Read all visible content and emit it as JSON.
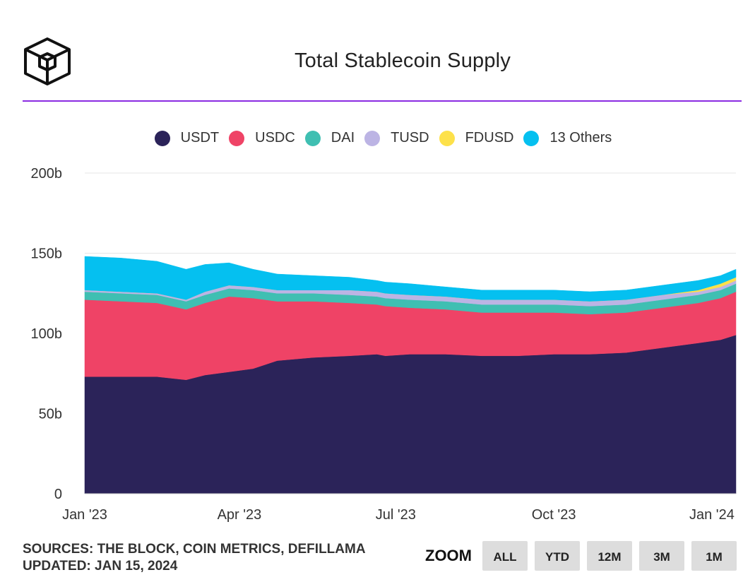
{
  "title": "Total Stablecoin Supply",
  "colors": {
    "accent_rule": "#8a2be2",
    "USDT": "#2b2359",
    "USDC": "#ef4366",
    "DAI": "#3fbfb2",
    "TUSD": "#bcb4e4",
    "FDUSD": "#fde14a",
    "Others": "#05c0f0",
    "logo": "#111111"
  },
  "logo_icon": "cube-icon",
  "legend": [
    {
      "label": "USDT",
      "color_key": "USDT"
    },
    {
      "label": "USDC",
      "color_key": "USDC"
    },
    {
      "label": "DAI",
      "color_key": "DAI"
    },
    {
      "label": "TUSD",
      "color_key": "TUSD"
    },
    {
      "label": "FDUSD",
      "color_key": "FDUSD"
    },
    {
      "label": "13 Others",
      "color_key": "Others"
    }
  ],
  "footer": {
    "sources": "SOURCES: THE BLOCK, COIN METRICS, DEFILLAMA",
    "updated": "UPDATED: JAN 15, 2024"
  },
  "zoom": {
    "label": "ZOOM",
    "buttons": [
      "ALL",
      "YTD",
      "12M",
      "3M",
      "1M"
    ]
  },
  "chart_data": {
    "type": "area",
    "stacked": true,
    "title": "Total Stablecoin Supply",
    "unit": "billion USD",
    "ylim": [
      0,
      200
    ],
    "y_ticks": [
      0,
      50,
      100,
      150,
      200
    ],
    "y_tick_labels": [
      "0",
      "50b",
      "100b",
      "150b",
      "200b"
    ],
    "x_range": [
      "2023-01-01",
      "2024-01-15"
    ],
    "x_ticks": [
      {
        "date": "2023-01-01",
        "label": "Jan '23"
      },
      {
        "date": "2023-04-01",
        "label": "Apr '23"
      },
      {
        "date": "2023-07-01",
        "label": "Jul '23"
      },
      {
        "date": "2023-10-01",
        "label": "Oct '23"
      },
      {
        "date": "2024-01-01",
        "label": "Jan '24"
      }
    ],
    "grid": true,
    "legend_position": "top",
    "x": [
      "2023-01-01",
      "2023-01-22",
      "2023-02-12",
      "2023-03-01",
      "2023-03-12",
      "2023-03-26",
      "2023-04-09",
      "2023-04-23",
      "2023-05-14",
      "2023-06-04",
      "2023-06-20",
      "2023-06-25",
      "2023-07-09",
      "2023-07-30",
      "2023-08-20",
      "2023-09-10",
      "2023-10-01",
      "2023-10-22",
      "2023-11-12",
      "2023-12-03",
      "2023-12-24",
      "2024-01-06",
      "2024-01-15"
    ],
    "series": [
      {
        "name": "USDT",
        "values": [
          73,
          73,
          73,
          71,
          74,
          76,
          78,
          83,
          85,
          86,
          87,
          86,
          87,
          87,
          86,
          86,
          87,
          87,
          88,
          91,
          94,
          96,
          99
        ]
      },
      {
        "name": "USDC",
        "values": [
          48,
          47,
          46,
          44,
          45,
          47,
          44,
          37,
          35,
          33,
          31,
          31,
          29,
          28,
          27,
          27,
          26,
          25,
          25,
          25,
          25,
          26,
          27
        ]
      },
      {
        "name": "DAI",
        "values": [
          5,
          5,
          5,
          5,
          5,
          5,
          5,
          5,
          5,
          5,
          5,
          5,
          5,
          5,
          5,
          5,
          5,
          5,
          5,
          5,
          5,
          5,
          5
        ]
      },
      {
        "name": "TUSD",
        "values": [
          1,
          1,
          1,
          1,
          2,
          2,
          2,
          2,
          2,
          3,
          3,
          3,
          3,
          3,
          3,
          3,
          3,
          3,
          3,
          3,
          2,
          2,
          2
        ]
      },
      {
        "name": "FDUSD",
        "values": [
          0,
          0,
          0,
          0,
          0,
          0,
          0,
          0,
          0,
          0,
          0,
          0,
          0,
          0,
          0,
          0,
          0,
          0,
          0,
          0,
          1,
          2,
          2
        ]
      },
      {
        "name": "13 Others",
        "values": [
          21,
          21,
          20,
          19,
          17,
          14,
          11,
          10,
          9,
          8,
          7,
          7,
          7,
          6,
          6,
          6,
          6,
          6,
          6,
          6,
          6,
          5,
          5
        ]
      }
    ]
  }
}
